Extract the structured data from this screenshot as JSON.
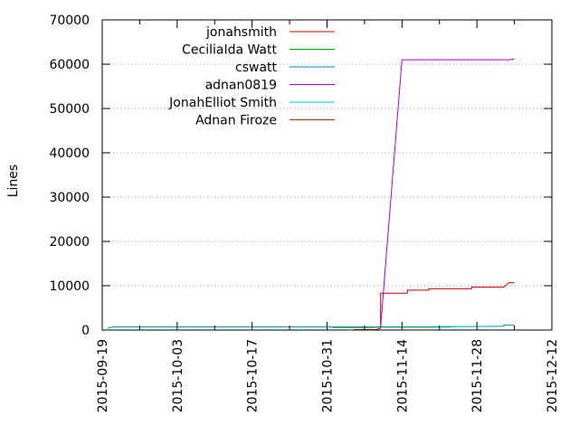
{
  "chart_data": {
    "type": "line",
    "title": "",
    "xlabel": "",
    "ylabel": "Lines",
    "x_type": "date",
    "xlim": [
      "2015-09-19",
      "2015-12-12"
    ],
    "ylim": [
      0,
      70000
    ],
    "x_ticks": [
      "2015-09-19",
      "2015-10-03",
      "2015-10-17",
      "2015-10-31",
      "2015-11-14",
      "2015-11-28",
      "2015-12-12"
    ],
    "y_ticks": [
      0,
      10000,
      20000,
      30000,
      40000,
      50000,
      60000,
      70000
    ],
    "y_tick_labels": [
      "0",
      "10000",
      "20000",
      "30000",
      "40000",
      "50000",
      "60000",
      "70000"
    ],
    "grid": "horizontal dotted",
    "legend_position": "top-left",
    "series": [
      {
        "name": "jonahsmith",
        "color": "#cc0000",
        "points": [
          [
            "2015-11-09",
            50
          ],
          [
            "2015-11-10",
            400
          ],
          [
            "2015-11-10",
            8300
          ],
          [
            "2015-11-15",
            8300
          ],
          [
            "2015-11-15",
            9000
          ],
          [
            "2015-11-19",
            9000
          ],
          [
            "2015-11-19",
            9300
          ],
          [
            "2015-11-27",
            9300
          ],
          [
            "2015-11-27",
            9700
          ],
          [
            "2015-12-03",
            9700
          ],
          [
            "2015-12-04",
            10700
          ],
          [
            "2015-12-05",
            10700
          ]
        ]
      },
      {
        "name": "CeciliaIda Watt",
        "color": "#00aa00",
        "points": [
          [
            "2015-11-01",
            550
          ],
          [
            "2015-11-08",
            550
          ],
          [
            "2015-11-10",
            650
          ],
          [
            "2015-11-23",
            650
          ],
          [
            "2015-11-23",
            550
          ]
        ]
      },
      {
        "name": "cswatt",
        "color": "#0088aa",
        "points": [
          [
            "2015-09-20",
            400
          ],
          [
            "2015-09-21",
            700
          ],
          [
            "2015-11-10",
            700
          ],
          [
            "2015-11-20",
            700
          ],
          [
            "2015-12-03",
            850
          ],
          [
            "2015-12-03",
            1100
          ],
          [
            "2015-12-05",
            1100
          ]
        ]
      },
      {
        "name": "adnan0819",
        "color": "#aa00cc",
        "points": [
          [
            "2015-11-10",
            700
          ],
          [
            "2015-11-14",
            61000
          ],
          [
            "2015-12-04",
            61000
          ],
          [
            "2015-12-05",
            61200
          ]
        ]
      },
      {
        "name": "JonahElliot Smith",
        "color": "#00cccc",
        "points": [
          [
            "2015-11-20",
            800
          ],
          [
            "2015-12-02",
            800
          ]
        ]
      },
      {
        "name": "Adnan Firoze",
        "color": "#aa3300",
        "points": [
          [
            "2015-11-05",
            100
          ],
          [
            "2015-11-09",
            100
          ]
        ]
      }
    ]
  }
}
